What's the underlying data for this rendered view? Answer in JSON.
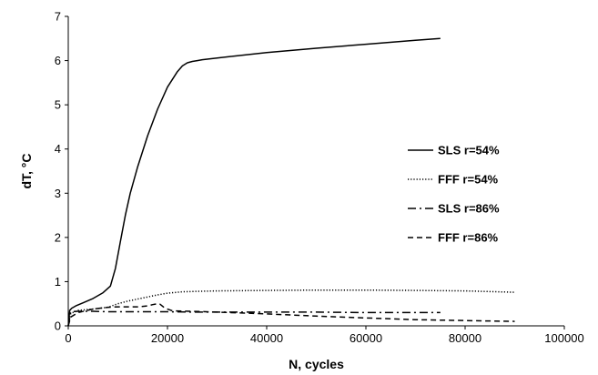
{
  "chart_data": {
    "type": "line",
    "title": "",
    "xlabel": "N, cycles",
    "ylabel": "dT, °C",
    "xlim": [
      0,
      100000
    ],
    "ylim": [
      0,
      7
    ],
    "x_ticks": [
      0,
      20000,
      40000,
      60000,
      80000,
      100000
    ],
    "y_ticks": [
      0,
      1,
      2,
      3,
      4,
      5,
      6,
      7
    ],
    "grid": false,
    "legend_position": "right",
    "series": [
      {
        "name": "SLS r=54%",
        "dash": "solid",
        "color": "#000000",
        "x": [
          0,
          300,
          700,
          1500,
          3000,
          5000,
          7000,
          8500,
          9500,
          10500,
          11500,
          12500,
          14000,
          16000,
          18000,
          20000,
          22000,
          23000,
          24000,
          25000,
          26000,
          27000,
          30000,
          40000,
          50000,
          60000,
          70000,
          75000
        ],
        "y": [
          0.0,
          0.35,
          0.4,
          0.45,
          0.52,
          0.62,
          0.75,
          0.9,
          1.3,
          1.9,
          2.5,
          3.0,
          3.6,
          4.3,
          4.9,
          5.4,
          5.75,
          5.88,
          5.95,
          5.98,
          6.0,
          6.02,
          6.06,
          6.18,
          6.28,
          6.37,
          6.46,
          6.5
        ]
      },
      {
        "name": "FFF r=54%",
        "dash": "dotted",
        "color": "#000000",
        "x": [
          0,
          500,
          2000,
          5000,
          8000,
          10000,
          12000,
          15000,
          18000,
          20000,
          23000,
          26000,
          30000,
          40000,
          50000,
          60000,
          70000,
          80000,
          90000
        ],
        "y": [
          0.0,
          0.28,
          0.35,
          0.38,
          0.42,
          0.5,
          0.56,
          0.63,
          0.7,
          0.74,
          0.77,
          0.78,
          0.79,
          0.8,
          0.81,
          0.81,
          0.8,
          0.79,
          0.76
        ]
      },
      {
        "name": "SLS r=86%",
        "dash": "dashdot",
        "color": "#000000",
        "x": [
          0,
          500,
          2000,
          5000,
          8000,
          10000,
          15000,
          20000,
          25000,
          30000,
          40000,
          50000,
          60000,
          70000,
          75000
        ],
        "y": [
          0.0,
          0.32,
          0.33,
          0.33,
          0.32,
          0.32,
          0.32,
          0.32,
          0.31,
          0.31,
          0.31,
          0.31,
          0.3,
          0.3,
          0.3
        ]
      },
      {
        "name": "FFF r=86%",
        "dash": "dashed",
        "color": "#000000",
        "x": [
          0,
          500,
          2000,
          5000,
          8000,
          10000,
          14000,
          16000,
          17000,
          18000,
          18500,
          19500,
          21000,
          25000,
          30000,
          40000,
          50000,
          60000,
          70000,
          80000,
          90000
        ],
        "y": [
          0.0,
          0.2,
          0.3,
          0.38,
          0.42,
          0.43,
          0.43,
          0.45,
          0.48,
          0.5,
          0.49,
          0.4,
          0.34,
          0.33,
          0.31,
          0.27,
          0.22,
          0.18,
          0.14,
          0.12,
          0.1
        ]
      }
    ]
  }
}
